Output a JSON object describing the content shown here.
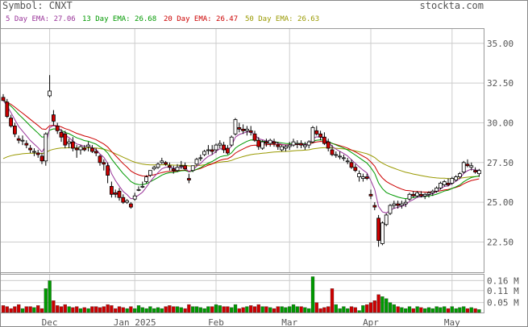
{
  "header": {
    "symbol": "Symbol: CNXT",
    "site": "stockta.com"
  },
  "legend": [
    {
      "label": "5 Day EMA: 27.06",
      "color": "#993399"
    },
    {
      "label": "13 Day EMA: 26.68",
      "color": "#009900"
    },
    {
      "label": "20 Day EMA: 26.47",
      "color": "#cc0000"
    },
    {
      "label": "50 Day EMA: 26.63",
      "color": "#999900"
    }
  ],
  "colors": {
    "up": "#ffffff",
    "down": "#cc0000",
    "vol_up": "#009900",
    "vol_down": "#cc0000",
    "grid": "#cccccc",
    "axis_text": "#555555"
  },
  "chart_data": {
    "type": "candlestick",
    "price_axis": {
      "ticks": [
        "35.00",
        "32.50",
        "30.00",
        "27.50",
        "25.00",
        "22.50"
      ],
      "ylim": [
        20.6,
        35.9
      ]
    },
    "volume_axis": {
      "ticks": [
        "0.16 M",
        "0.11 M",
        "0.05 M"
      ],
      "ylim": [
        0,
        0.19
      ]
    },
    "x_ticks": [
      {
        "label": "Dec",
        "index": 12
      },
      {
        "label": "Jan 2025",
        "index": 34
      },
      {
        "label": "Feb",
        "index": 55
      },
      {
        "label": "Mar",
        "index": 74
      },
      {
        "label": "Apr",
        "index": 95
      },
      {
        "label": "May",
        "index": 116
      }
    ],
    "ohlcv": [
      [
        31.6,
        31.8,
        31.4,
        31.4,
        0.035
      ],
      [
        31.3,
        31.5,
        30.3,
        30.4,
        0.03
      ],
      [
        30.3,
        30.5,
        29.7,
        29.8,
        0.02
      ],
      [
        29.8,
        30.0,
        29.1,
        29.3,
        0.03
      ],
      [
        29.0,
        29.2,
        28.7,
        28.9,
        0.04
      ],
      [
        28.9,
        29.2,
        28.6,
        28.9,
        0.02
      ],
      [
        28.7,
        28.9,
        28.4,
        28.6,
        0.03
      ],
      [
        28.4,
        28.6,
        28.1,
        28.3,
        0.03
      ],
      [
        28.2,
        28.4,
        27.9,
        28.2,
        0.025
      ],
      [
        28.1,
        28.3,
        27.8,
        28.0,
        0.035
      ],
      [
        27.9,
        28.1,
        27.4,
        27.6,
        0.02
      ],
      [
        27.6,
        29.4,
        27.3,
        29.3,
        0.12
      ],
      [
        31.7,
        33.0,
        31.6,
        32.0,
        0.16
      ],
      [
        30.5,
        30.8,
        29.8,
        30.1,
        0.06
      ],
      [
        29.8,
        30.0,
        29.3,
        29.5,
        0.035
      ],
      [
        29.4,
        29.6,
        28.8,
        29.1,
        0.03
      ],
      [
        29.3,
        29.5,
        28.4,
        28.6,
        0.04
      ],
      [
        28.7,
        29.0,
        28.4,
        28.8,
        0.03
      ],
      [
        28.8,
        29.1,
        28.2,
        28.4,
        0.025
      ],
      [
        28.4,
        28.6,
        27.8,
        28.3,
        0.03
      ],
      [
        28.3,
        28.6,
        28.0,
        28.5,
        0.02
      ],
      [
        28.4,
        28.6,
        28.2,
        28.3,
        0.025
      ],
      [
        28.5,
        28.8,
        28.2,
        28.6,
        0.02
      ],
      [
        28.4,
        28.6,
        28.1,
        28.2,
        0.03
      ],
      [
        28.2,
        28.4,
        27.9,
        28.1,
        0.03
      ],
      [
        27.9,
        28.0,
        27.3,
        27.5,
        0.025
      ],
      [
        27.5,
        27.7,
        27.0,
        27.4,
        0.03
      ],
      [
        27.3,
        27.5,
        26.2,
        26.7,
        0.04
      ],
      [
        26.0,
        26.3,
        25.3,
        25.5,
        0.035
      ],
      [
        25.6,
        25.8,
        25.3,
        25.5,
        0.02
      ],
      [
        25.7,
        25.9,
        25.1,
        25.3,
        0.03
      ],
      [
        25.3,
        25.5,
        24.9,
        25.0,
        0.025
      ],
      [
        25.0,
        25.2,
        24.9,
        25.1,
        0.02
      ],
      [
        24.9,
        25.0,
        24.6,
        24.7,
        0.03
      ],
      [
        25.2,
        25.6,
        25.1,
        25.4,
        0.02
      ],
      [
        25.8,
        26.0,
        25.7,
        25.8,
        0.035
      ],
      [
        26.0,
        26.3,
        25.9,
        26.0,
        0.025
      ],
      [
        26.3,
        26.7,
        26.2,
        26.6,
        0.02
      ],
      [
        26.7,
        27.0,
        26.6,
        27.0,
        0.03
      ],
      [
        27.1,
        27.3,
        27.0,
        27.2,
        0.02
      ],
      [
        27.2,
        27.5,
        27.1,
        27.4,
        0.025
      ],
      [
        27.5,
        27.8,
        27.4,
        27.6,
        0.02
      ],
      [
        27.5,
        27.6,
        27.3,
        27.4,
        0.03
      ],
      [
        27.3,
        27.5,
        27.0,
        27.2,
        0.035
      ],
      [
        27.1,
        27.3,
        26.8,
        27.0,
        0.03
      ],
      [
        27.0,
        27.4,
        26.9,
        27.2,
        0.03
      ],
      [
        27.3,
        27.6,
        27.1,
        27.3,
        0.025
      ],
      [
        27.3,
        27.5,
        27.0,
        27.1,
        0.02
      ],
      [
        26.5,
        26.8,
        26.2,
        26.4,
        0.04
      ],
      [
        27.0,
        27.3,
        26.9,
        27.3,
        0.03
      ],
      [
        27.4,
        27.8,
        27.3,
        27.7,
        0.03
      ],
      [
        27.8,
        28.0,
        27.6,
        27.8,
        0.025
      ],
      [
        28.0,
        28.3,
        27.9,
        28.2,
        0.02
      ],
      [
        28.3,
        28.6,
        28.0,
        28.3,
        0.03
      ],
      [
        28.3,
        28.6,
        28.0,
        28.2,
        0.03
      ],
      [
        28.3,
        28.7,
        28.1,
        28.6,
        0.04
      ],
      [
        28.6,
        28.9,
        28.4,
        28.7,
        0.035
      ],
      [
        28.6,
        28.8,
        28.1,
        28.3,
        0.03
      ],
      [
        28.4,
        28.6,
        28.0,
        28.1,
        0.03
      ],
      [
        28.6,
        29.2,
        28.5,
        29.1,
        0.025
      ],
      [
        29.3,
        30.3,
        29.2,
        30.2,
        0.04
      ],
      [
        29.7,
        30.0,
        29.4,
        29.6,
        0.02
      ],
      [
        29.6,
        29.9,
        29.3,
        29.5,
        0.025
      ],
      [
        29.5,
        29.8,
        29.2,
        29.6,
        0.03
      ],
      [
        29.5,
        29.8,
        29.2,
        29.4,
        0.035
      ],
      [
        29.3,
        29.5,
        28.8,
        28.9,
        0.03
      ],
      [
        28.9,
        29.1,
        28.3,
        28.5,
        0.04
      ],
      [
        28.4,
        28.9,
        28.3,
        28.8,
        0.03
      ],
      [
        28.8,
        29.0,
        28.5,
        28.7,
        0.03
      ],
      [
        28.7,
        29.0,
        28.5,
        28.9,
        0.025
      ],
      [
        28.8,
        29.0,
        28.5,
        28.7,
        0.02
      ],
      [
        28.6,
        28.8,
        28.3,
        28.5,
        0.03
      ],
      [
        28.3,
        28.6,
        28.2,
        28.5,
        0.03
      ],
      [
        28.4,
        28.6,
        28.2,
        28.5,
        0.025
      ],
      [
        28.5,
        28.8,
        28.3,
        28.6,
        0.03
      ],
      [
        28.6,
        29.0,
        28.5,
        28.8,
        0.04
      ],
      [
        28.7,
        28.9,
        28.4,
        28.7,
        0.03
      ],
      [
        28.7,
        28.9,
        28.4,
        28.6,
        0.03
      ],
      [
        28.5,
        28.8,
        28.3,
        28.6,
        0.025
      ],
      [
        28.6,
        28.9,
        28.4,
        28.8,
        0.02
      ],
      [
        28.8,
        29.8,
        28.7,
        29.7,
        0.18
      ],
      [
        29.5,
        29.8,
        29.2,
        29.3,
        0.05
      ],
      [
        29.3,
        29.5,
        28.9,
        29.1,
        0.02
      ],
      [
        29.1,
        29.4,
        28.6,
        28.7,
        0.025
      ],
      [
        28.8,
        29.0,
        28.2,
        28.4,
        0.03
      ],
      [
        28.3,
        28.6,
        27.9,
        28.0,
        0.12
      ],
      [
        28.0,
        28.2,
        27.8,
        28.0,
        0.04
      ],
      [
        27.9,
        28.2,
        27.7,
        27.9,
        0.02
      ],
      [
        27.8,
        28.0,
        27.6,
        27.8,
        0.03
      ],
      [
        27.6,
        27.8,
        27.4,
        27.6,
        0.02
      ],
      [
        27.5,
        27.7,
        27.1,
        27.2,
        0.03
      ],
      [
        27.2,
        27.4,
        26.9,
        27.0,
        0.025
      ],
      [
        26.6,
        27.0,
        26.3,
        26.8,
        0.01
      ],
      [
        26.5,
        26.8,
        26.3,
        26.6,
        0.035
      ],
      [
        26.6,
        26.8,
        26.4,
        26.5,
        0.04
      ],
      [
        25.5,
        25.8,
        25.2,
        25.4,
        0.05
      ],
      [
        24.8,
        25.0,
        24.5,
        24.7,
        0.06
      ],
      [
        24.0,
        24.2,
        22.2,
        22.6,
        0.09
      ],
      [
        22.4,
        23.8,
        22.3,
        23.7,
        0.08
      ],
      [
        23.6,
        24.3,
        23.5,
        24.2,
        0.07
      ],
      [
        24.3,
        24.9,
        24.2,
        24.8,
        0.05
      ],
      [
        24.8,
        25.1,
        24.6,
        24.9,
        0.04
      ],
      [
        24.9,
        25.1,
        24.6,
        24.8,
        0.03
      ],
      [
        24.8,
        25.1,
        24.6,
        24.9,
        0.025
      ],
      [
        24.9,
        25.2,
        24.7,
        25.0,
        0.02
      ],
      [
        25.2,
        25.6,
        25.1,
        25.5,
        0.03
      ],
      [
        25.5,
        25.7,
        25.3,
        25.4,
        0.02
      ],
      [
        25.4,
        25.7,
        25.3,
        25.6,
        0.03
      ],
      [
        25.5,
        25.7,
        25.3,
        25.4,
        0.025
      ],
      [
        25.4,
        25.6,
        25.2,
        25.5,
        0.02
      ],
      [
        25.5,
        25.7,
        25.3,
        25.6,
        0.025
      ],
      [
        25.6,
        25.8,
        25.4,
        25.7,
        0.02
      ],
      [
        25.7,
        26.0,
        25.6,
        25.9,
        0.03
      ],
      [
        25.9,
        26.3,
        25.8,
        26.2,
        0.025
      ],
      [
        26.1,
        26.4,
        26.0,
        26.3,
        0.03
      ],
      [
        26.2,
        26.5,
        26.0,
        26.1,
        0.02
      ],
      [
        26.2,
        26.6,
        26.1,
        26.5,
        0.03
      ],
      [
        26.4,
        26.7,
        26.3,
        26.6,
        0.02
      ],
      [
        26.6,
        26.9,
        26.5,
        26.8,
        0.025
      ],
      [
        26.9,
        27.6,
        26.8,
        27.5,
        0.03
      ],
      [
        27.4,
        27.7,
        27.2,
        27.3,
        0.02
      ],
      [
        27.2,
        27.5,
        27.0,
        27.3,
        0.025
      ],
      [
        27.0,
        27.2,
        26.8,
        26.9,
        0.02
      ],
      [
        26.8,
        27.1,
        26.6,
        27.0,
        0.015
      ]
    ]
  }
}
